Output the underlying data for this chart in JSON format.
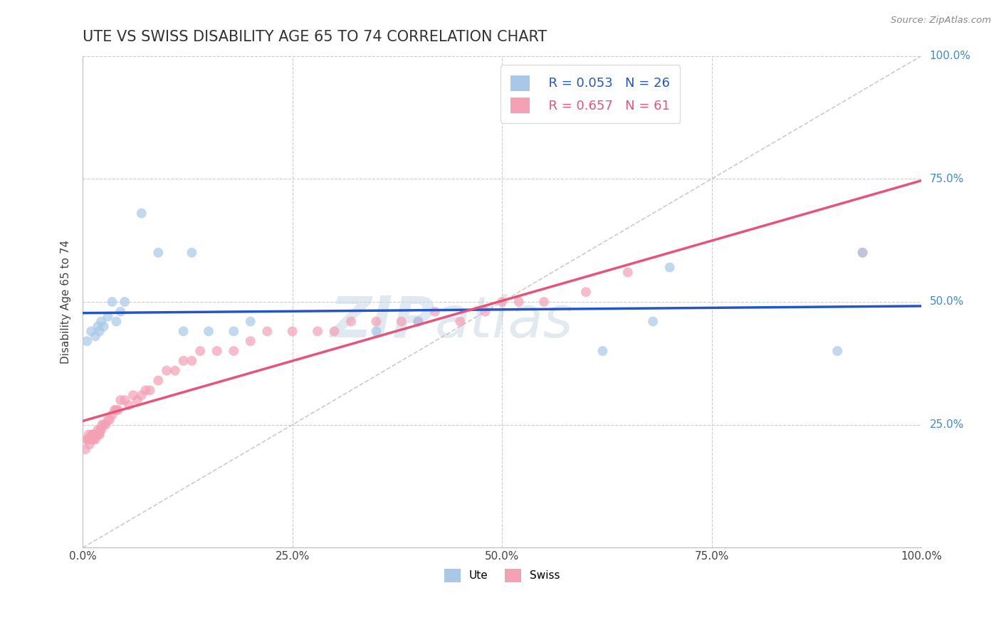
{
  "title": "UTE VS SWISS DISABILITY AGE 65 TO 74 CORRELATION CHART",
  "source": "Source: ZipAtlas.com",
  "ylabel": "Disability Age 65 to 74",
  "xlabel": "",
  "ute_R": 0.053,
  "ute_N": 26,
  "swiss_R": 0.657,
  "swiss_N": 61,
  "ute_color": "#a8c8e8",
  "swiss_color": "#f4a0b5",
  "ute_line_color": "#2255cc",
  "swiss_line_color": "#e8537a",
  "ref_line_color": "#cccccc",
  "background_color": "#ffffff",
  "grid_color": "#cccccc",
  "ute_x": [
    0.005,
    0.01,
    0.015,
    0.018,
    0.02,
    0.022,
    0.025,
    0.03,
    0.035,
    0.04,
    0.045,
    0.05,
    0.07,
    0.09,
    0.12,
    0.13,
    0.15,
    0.18,
    0.2,
    0.35,
    0.4,
    0.62,
    0.68,
    0.7,
    0.9,
    0.93
  ],
  "ute_y": [
    0.42,
    0.44,
    0.43,
    0.45,
    0.44,
    0.46,
    0.45,
    0.47,
    0.5,
    0.46,
    0.48,
    0.5,
    0.68,
    0.6,
    0.44,
    0.6,
    0.44,
    0.44,
    0.46,
    0.44,
    0.46,
    0.4,
    0.46,
    0.57,
    0.4,
    0.6
  ],
  "swiss_x": [
    0.003,
    0.005,
    0.006,
    0.007,
    0.008,
    0.009,
    0.01,
    0.011,
    0.012,
    0.013,
    0.014,
    0.015,
    0.016,
    0.018,
    0.019,
    0.02,
    0.021,
    0.022,
    0.023,
    0.025,
    0.027,
    0.03,
    0.032,
    0.035,
    0.038,
    0.04,
    0.042,
    0.045,
    0.05,
    0.055,
    0.06,
    0.065,
    0.07,
    0.075,
    0.08,
    0.09,
    0.1,
    0.11,
    0.12,
    0.13,
    0.14,
    0.16,
    0.18,
    0.2,
    0.22,
    0.25,
    0.28,
    0.3,
    0.32,
    0.35,
    0.38,
    0.4,
    0.42,
    0.45,
    0.48,
    0.5,
    0.52,
    0.55,
    0.6,
    0.65,
    0.93
  ],
  "swiss_y": [
    0.2,
    0.22,
    0.22,
    0.23,
    0.21,
    0.22,
    0.22,
    0.23,
    0.23,
    0.22,
    0.23,
    0.22,
    0.23,
    0.24,
    0.23,
    0.23,
    0.24,
    0.24,
    0.25,
    0.25,
    0.25,
    0.26,
    0.26,
    0.27,
    0.28,
    0.28,
    0.28,
    0.3,
    0.3,
    0.29,
    0.31,
    0.3,
    0.31,
    0.32,
    0.32,
    0.34,
    0.36,
    0.36,
    0.38,
    0.38,
    0.4,
    0.4,
    0.4,
    0.42,
    0.44,
    0.44,
    0.44,
    0.44,
    0.46,
    0.46,
    0.46,
    0.46,
    0.48,
    0.46,
    0.48,
    0.5,
    0.5,
    0.5,
    0.52,
    0.56,
    0.6
  ],
  "xlim": [
    0.0,
    1.0
  ],
  "ylim": [
    0.0,
    1.0
  ],
  "xticks": [
    0.0,
    0.25,
    0.5,
    0.75,
    1.0
  ],
  "xtick_labels": [
    "0.0%",
    "25.0%",
    "50.0%",
    "75.0%",
    "100.0%"
  ],
  "ytick_positions": [
    0.25,
    0.5,
    0.75,
    1.0
  ],
  "ytick_labels": [
    "25.0%",
    "50.0%",
    "75.0%",
    "100.0%"
  ],
  "watermark_zip": "ZIP",
  "watermark_atlas": "atlas",
  "title_fontsize": 15,
  "axis_label_fontsize": 11,
  "tick_fontsize": 11,
  "legend_fontsize": 13,
  "marker_size": 100
}
